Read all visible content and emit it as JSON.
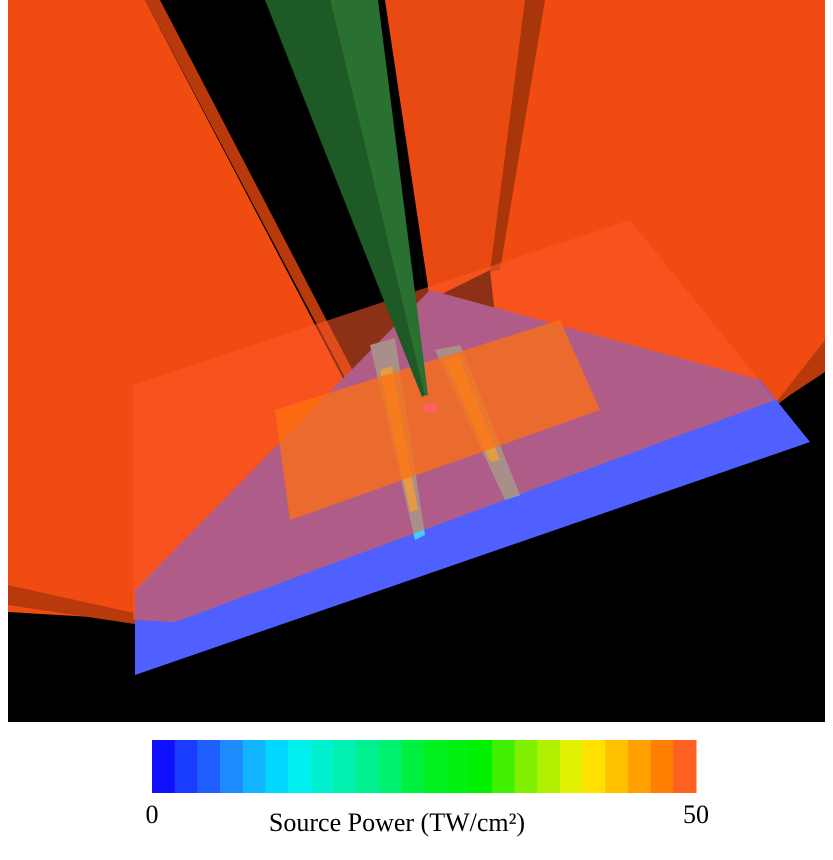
{
  "colorbar": {
    "label": "Source Power (TW/cm²)",
    "lim": [
      0,
      50
    ],
    "ticks": [
      0,
      50
    ],
    "colors": [
      "#1010ff",
      "#1a3cff",
      "#2060ff",
      "#1e8cff",
      "#10b4ff",
      "#00d8ff",
      "#00f0f0",
      "#00f0d0",
      "#00f0b0",
      "#00f090",
      "#00f070",
      "#00f040",
      "#00f020",
      "#00f010",
      "#00f000",
      "#40f000",
      "#80f000",
      "#b0f000",
      "#e0f000",
      "#ffe000",
      "#ffc000",
      "#ffa000",
      "#ff8000",
      "#ff6020"
    ]
  }
}
